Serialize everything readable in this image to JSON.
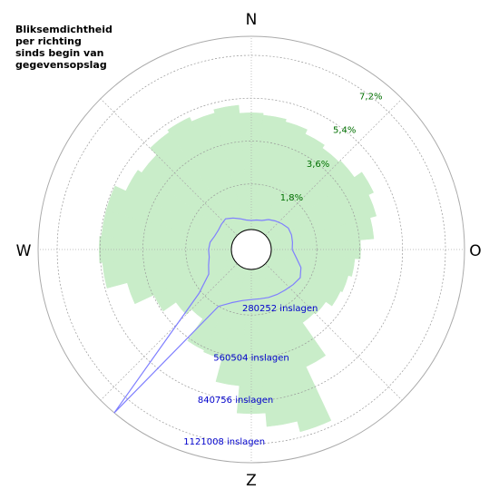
{
  "chart_data": {
    "type": "polar",
    "title": [
      "Bliksemdichtheid",
      "per richting",
      "sinds begin van",
      "gegevensopslag"
    ],
    "directions": [
      "N",
      "O",
      "Z",
      "W"
    ],
    "theta": [
      0,
      10,
      20,
      30,
      40,
      50,
      60,
      70,
      80,
      90,
      100,
      110,
      120,
      130,
      140,
      150,
      160,
      170,
      180,
      190,
      200,
      210,
      220,
      230,
      240,
      250,
      260,
      270,
      280,
      290,
      300,
      310,
      320,
      330,
      340,
      350
    ],
    "series": [
      {
        "color": "#c9edc9",
        "values": [
          4.79,
          4.71,
          4.6,
          4.4,
          4.25,
          4.33,
          4.71,
          4.48,
          4.21,
          3.64,
          3.41,
          3.26,
          3.18,
          2.87,
          2.8,
          4.48,
          6.97,
          6.51,
          5.94,
          4.79,
          3.79,
          3.72,
          2.6,
          2.91,
          3.56,
          4.44,
          5.32,
          5.44,
          5.36,
          5.36,
          4.86,
          4.67,
          5.06,
          5.17,
          4.98,
          5.13
        ]
      },
      {
        "color": "#7f7fff",
        "axis": "r2",
        "values": [
          41741,
          47704,
          53667,
          77519,
          95408,
          113297,
          131186,
          131186,
          125223,
          119260,
          149075,
          196779,
          220631,
          208705,
          196779,
          190816,
          184853,
          178890,
          178890,
          190816,
          220631,
          280261,
          1246267,
          298150,
          172927,
          149075,
          131186,
          131186,
          125223,
          107334,
          101371,
          107334,
          113297,
          89445,
          65593,
          47704
        ]
      }
    ],
    "rlim": [
      0,
      8
    ],
    "rticks": [
      {
        "value": 1.8,
        "label": "1,8%"
      },
      {
        "value": 3.6,
        "label": "3,6%"
      },
      {
        "value": 5.4,
        "label": "5,4%"
      },
      {
        "value": 7.2,
        "label": "7,2%"
      }
    ],
    "r2lim": [
      0,
      1245000
    ],
    "r2ticks": [
      {
        "value": 280252,
        "label": "280252 inslagen"
      },
      {
        "value": 560504,
        "label": "560504 inslagen"
      },
      {
        "value": 840756,
        "label": "840756 inslagen"
      },
      {
        "value": 1121008,
        "label": "1121008 inslagen"
      }
    ],
    "rtick_color": "#007000",
    "r2tick_color": "#0000cc"
  }
}
